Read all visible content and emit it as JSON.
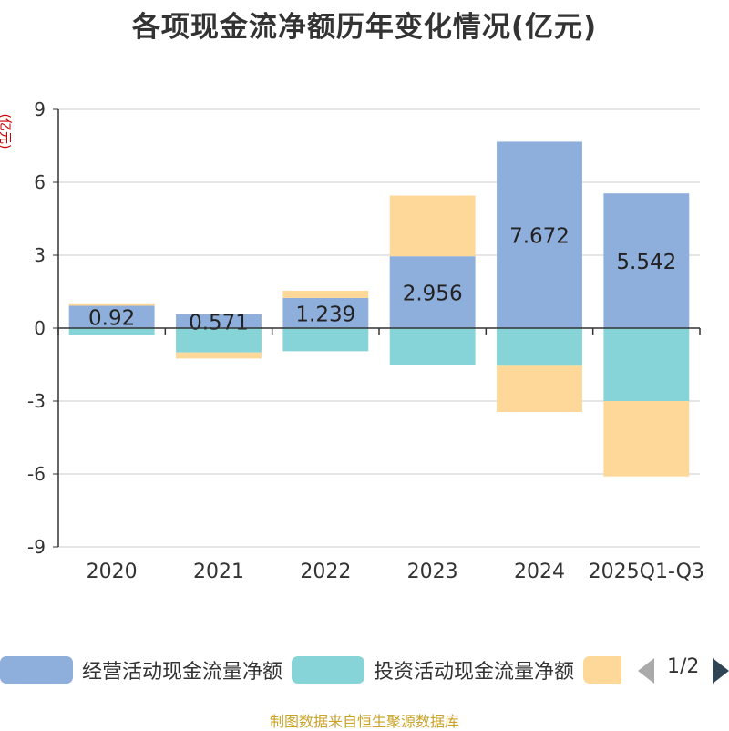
{
  "chart_data": {
    "type": "bar",
    "stacked": true,
    "title": "各项现金流净额历年变化情况(亿元)",
    "ylabel": "(亿元)",
    "xlabel": "",
    "categories": [
      "2020",
      "2021",
      "2022",
      "2023",
      "2024",
      "2025Q1-Q3"
    ],
    "ylim": [
      -9,
      9
    ],
    "yticks": [
      9,
      6,
      3,
      0,
      -3,
      -6,
      -9
    ],
    "grid": true,
    "series": [
      {
        "name": "经营活动现金流量净额",
        "color": "#8eaedc",
        "values": [
          0.92,
          0.571,
          1.239,
          2.956,
          7.672,
          5.542
        ],
        "labels": [
          "0.92",
          "0.571",
          "1.239",
          "2.956",
          "7.672",
          "5.542"
        ]
      },
      {
        "name": "投资活动现金流量净额",
        "color": "#86d4d8",
        "values": [
          -0.3,
          -1.0,
          -0.95,
          -1.5,
          -1.55,
          -3.0
        ]
      },
      {
        "name": "",
        "color": "#fdd898",
        "values": [
          0.1,
          -0.25,
          0.3,
          2.5,
          -1.9,
          -3.1
        ]
      }
    ]
  },
  "legend": {
    "pager": "1/2"
  },
  "source": "制图数据来自恒生聚源数据库"
}
